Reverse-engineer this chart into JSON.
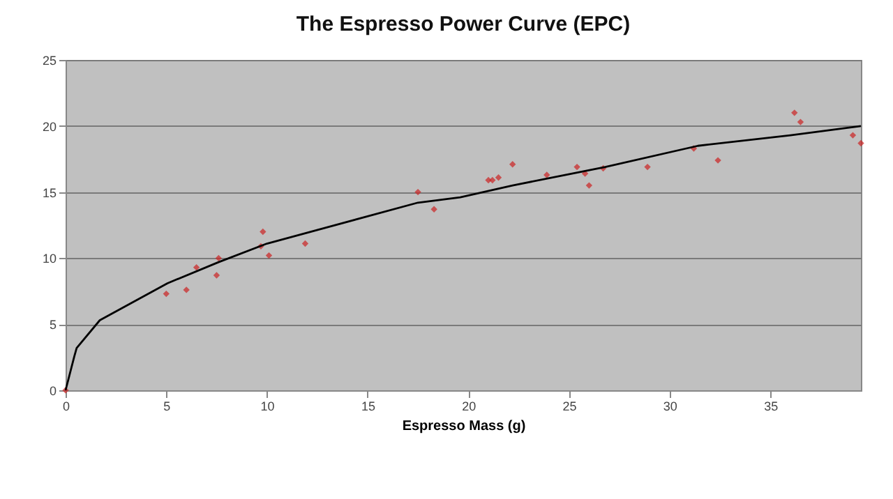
{
  "chart_data": {
    "type": "scatter",
    "title": "The Espresso Power Curve (EPC)",
    "xlabel": "Espresso Mass (g)",
    "xlim": [
      0,
      39.5
    ],
    "xticks": [
      0,
      5,
      10,
      15,
      20,
      25,
      30,
      35
    ],
    "ylim": [
      0,
      25
    ],
    "yticks": [
      0,
      5,
      10,
      15,
      20,
      25
    ],
    "grid": "y",
    "marker": "diamond",
    "series": [
      {
        "color": "#cc2222",
        "x": [
          0,
          5.0,
          6.0,
          6.5,
          7.5,
          7.6,
          9.7,
          9.8,
          10.1,
          11.9,
          17.5,
          18.3,
          21.0,
          21.2,
          21.5,
          22.2,
          23.9,
          25.4,
          25.8,
          26.0,
          26.7,
          28.9,
          31.2,
          32.4,
          36.2,
          36.5,
          39.1,
          39.5
        ],
        "values": [
          0,
          7.3,
          7.6,
          9.3,
          8.7,
          10.0,
          10.9,
          12.0,
          10.2,
          11.1,
          15.0,
          13.7,
          15.9,
          15.9,
          16.1,
          17.1,
          16.3,
          16.9,
          16.4,
          15.5,
          16.8,
          16.9,
          18.3,
          17.4,
          21.0,
          20.3,
          19.3,
          18.7
        ]
      },
      {
        "type": "line",
        "color": "#000000",
        "line_style": "solid",
        "marker": "none",
        "x": [
          0,
          0.44,
          0.55,
          1.7,
          5.06,
          7.6,
          10.0,
          12.9,
          17.5,
          19.6,
          22.2,
          26.8,
          31.4,
          36.0,
          39.5
        ],
        "values": [
          0,
          2.6,
          3.2,
          5.3,
          8.1,
          9.7,
          11.1,
          12.3,
          14.2,
          14.6,
          15.5,
          16.9,
          18.5,
          19.3,
          20.0
        ]
      }
    ]
  }
}
